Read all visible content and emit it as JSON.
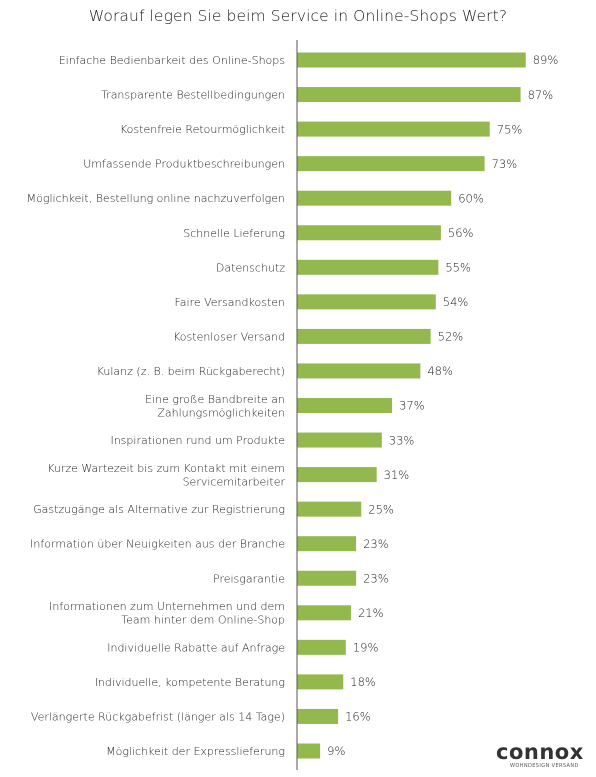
{
  "chart_data": {
    "type": "bar",
    "orientation": "horizontal",
    "title": "Worauf legen Sie beim Service in Online-Shops Wert?",
    "categories": [
      "Einfache Bedienbarkeit des Online-Shops",
      "Transparente Bestellbedingungen",
      "Kostenfreie Retourmöglichkeit",
      "Umfassende Produktbeschreibungen",
      "Möglichkeit, Bestellung online nachzuverfolgen",
      "Schnelle Lieferung",
      "Datenschutz",
      "Faire Versandkosten",
      "Kostenloser Versand",
      "Kulanz (z. B. beim Rückgaberecht)",
      "Eine große Bandbreite an Zahlungsmöglichkeiten",
      "Inspirationen rund um Produkte",
      "Kurze Wartezeit bis zum Kontakt mit einem Servicemitarbeiter",
      "Gastzugänge als Alternative zur Registrierung",
      "Information über Neuigkeiten aus der Branche",
      "Preisgarantie",
      "Informationen zum Unternehmen und dem Team hinter dem Online-Shop",
      "Individuelle Rabatte auf Anfrage",
      "Individuelle, kompetente Beratung",
      "Verlängerte Rückgabefrist (länger als 14 Tage)",
      "Möglichkeit der Expresslieferung"
    ],
    "label_lines": [
      [
        "Einfache Bedienbarkeit des Online-Shops"
      ],
      [
        "Transparente Bestellbedingungen"
      ],
      [
        "Kostenfreie Retourmöglichkeit"
      ],
      [
        "Umfassende Produktbeschreibungen"
      ],
      [
        "Möglichkeit, Bestellung online nachzuverfolgen"
      ],
      [
        "Schnelle Lieferung"
      ],
      [
        "Datenschutz"
      ],
      [
        "Faire Versandkosten"
      ],
      [
        "Kostenloser Versand"
      ],
      [
        "Kulanz (z. B. beim Rückgaberecht)"
      ],
      [
        "Eine große Bandbreite an",
        "Zahlungsmöglichkeiten"
      ],
      [
        "Inspirationen rund um Produkte"
      ],
      [
        "Kurze Wartezeit bis zum Kontakt mit einem",
        "Servicemitarbeiter"
      ],
      [
        "Gastzugänge als Alternative zur Registrierung"
      ],
      [
        "Information über Neuigkeiten aus der Branche"
      ],
      [
        "Preisgarantie"
      ],
      [
        "Informationen zum Unternehmen und dem",
        "Team hinter dem Online-Shop"
      ],
      [
        "Individuelle Rabatte auf Anfrage"
      ],
      [
        "Individuelle, kompetente Beratung"
      ],
      [
        "Verlängerte Rückgabefrist (länger als 14 Tage)"
      ],
      [
        "Möglichkeit der Expresslieferung"
      ]
    ],
    "values": [
      89,
      87,
      75,
      73,
      60,
      56,
      55,
      54,
      52,
      48,
      37,
      33,
      31,
      25,
      23,
      23,
      21,
      19,
      18,
      16,
      9
    ],
    "value_labels": [
      "89%",
      "87%",
      "75%",
      "73%",
      "60%",
      "56%",
      "55%",
      "54%",
      "52%",
      "48%",
      "37%",
      "33%",
      "31%",
      "25%",
      "23%",
      "23%",
      "21%",
      "19%",
      "18%",
      "16%",
      "9%"
    ],
    "xlim": [
      0,
      100
    ],
    "grid": false,
    "legend": "none",
    "bar_color": "#93b84e",
    "axis_color": "#555555"
  },
  "logo": {
    "word": "connox",
    "tagline": "WOHNDESIGN VERSAND"
  }
}
